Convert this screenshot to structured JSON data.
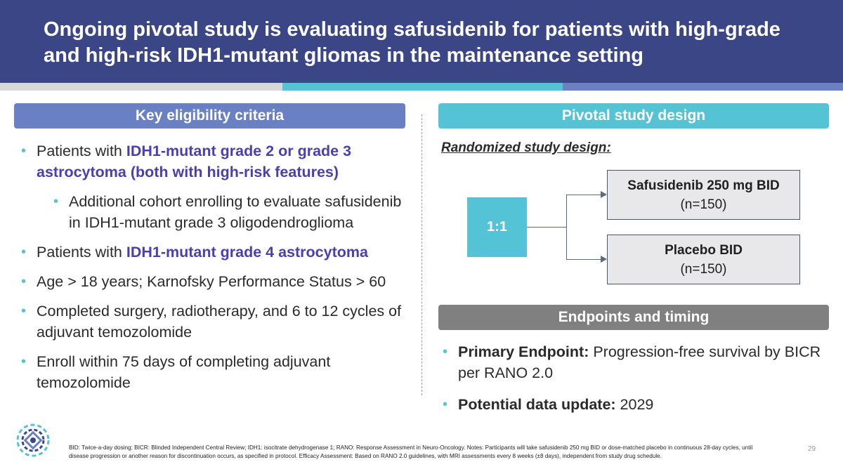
{
  "header": {
    "title_line1": "Ongoing pivotal study is evaluating safusidenib for patients with high-grade",
    "title_line2": "and high-risk IDH1-mutant gliomas in the maintenance setting"
  },
  "left_panel": {
    "heading": "Key eligibility criteria",
    "criteria": {
      "c1_prefix": "Patients with ",
      "c1_highlight": "IDH1-mutant grade 2 or grade 3 astrocytoma (both with high-risk features)",
      "c1_sub": "Additional cohort enrolling to evaluate safusidenib in IDH1-mutant grade 3 oligodendroglioma",
      "c2_prefix": "Patients with ",
      "c2_highlight": "IDH1-mutant grade 4 astrocytoma",
      "c3": "Age > 18 years; Karnofsky Performance Status > 60",
      "c4": "Completed surgery, radiotherapy, and 6 to 12 cycles of adjuvant temozolomide",
      "c5": "Enroll within 75 days of completing adjuvant temozolomide"
    }
  },
  "right_panel": {
    "design_heading": "Pivotal study design",
    "randomized_label": "Randomized study design:",
    "ratio": "1:1",
    "arm1_name": "Safusidenib 250 mg BID",
    "arm1_n": "(n=150)",
    "arm2_name": "Placebo BID",
    "arm2_n": "(n=150)",
    "endpoints_heading": "Endpoints and timing",
    "primary_label": "Primary Endpoint:",
    "primary_text": " Progression-free survival by BICR per RANO 2.0",
    "update_label": "Potential data update:",
    "update_text": " 2029"
  },
  "footer": {
    "footnote": "BID: Twice-a-day dosing; BICR: Blinded Independent Central Review; IDH1: isocitrate dehydrogenase 1; RANO: Response Assessment in Neuro-Oncology. Notes: Participants will take safusidenib 250 mg BID or dose-matched placebo in continuous 28-day cycles, until disease progression or another reason for discontinuation occurs, as specified in protocol. Efficacy Assessment: Based on RANO 2.0 guidelines, with MRI assessments every 8 weeks (±8 days), independent from study drug schedule.",
    "page_number": "29"
  },
  "colors": {
    "header_bg": "#3b4687",
    "teal": "#55c3d6",
    "periwinkle": "#6a80c4",
    "highlight_purple": "#4a3fae",
    "gray_pill": "#808080"
  },
  "icons": {
    "logo": "company-logo-icon"
  }
}
